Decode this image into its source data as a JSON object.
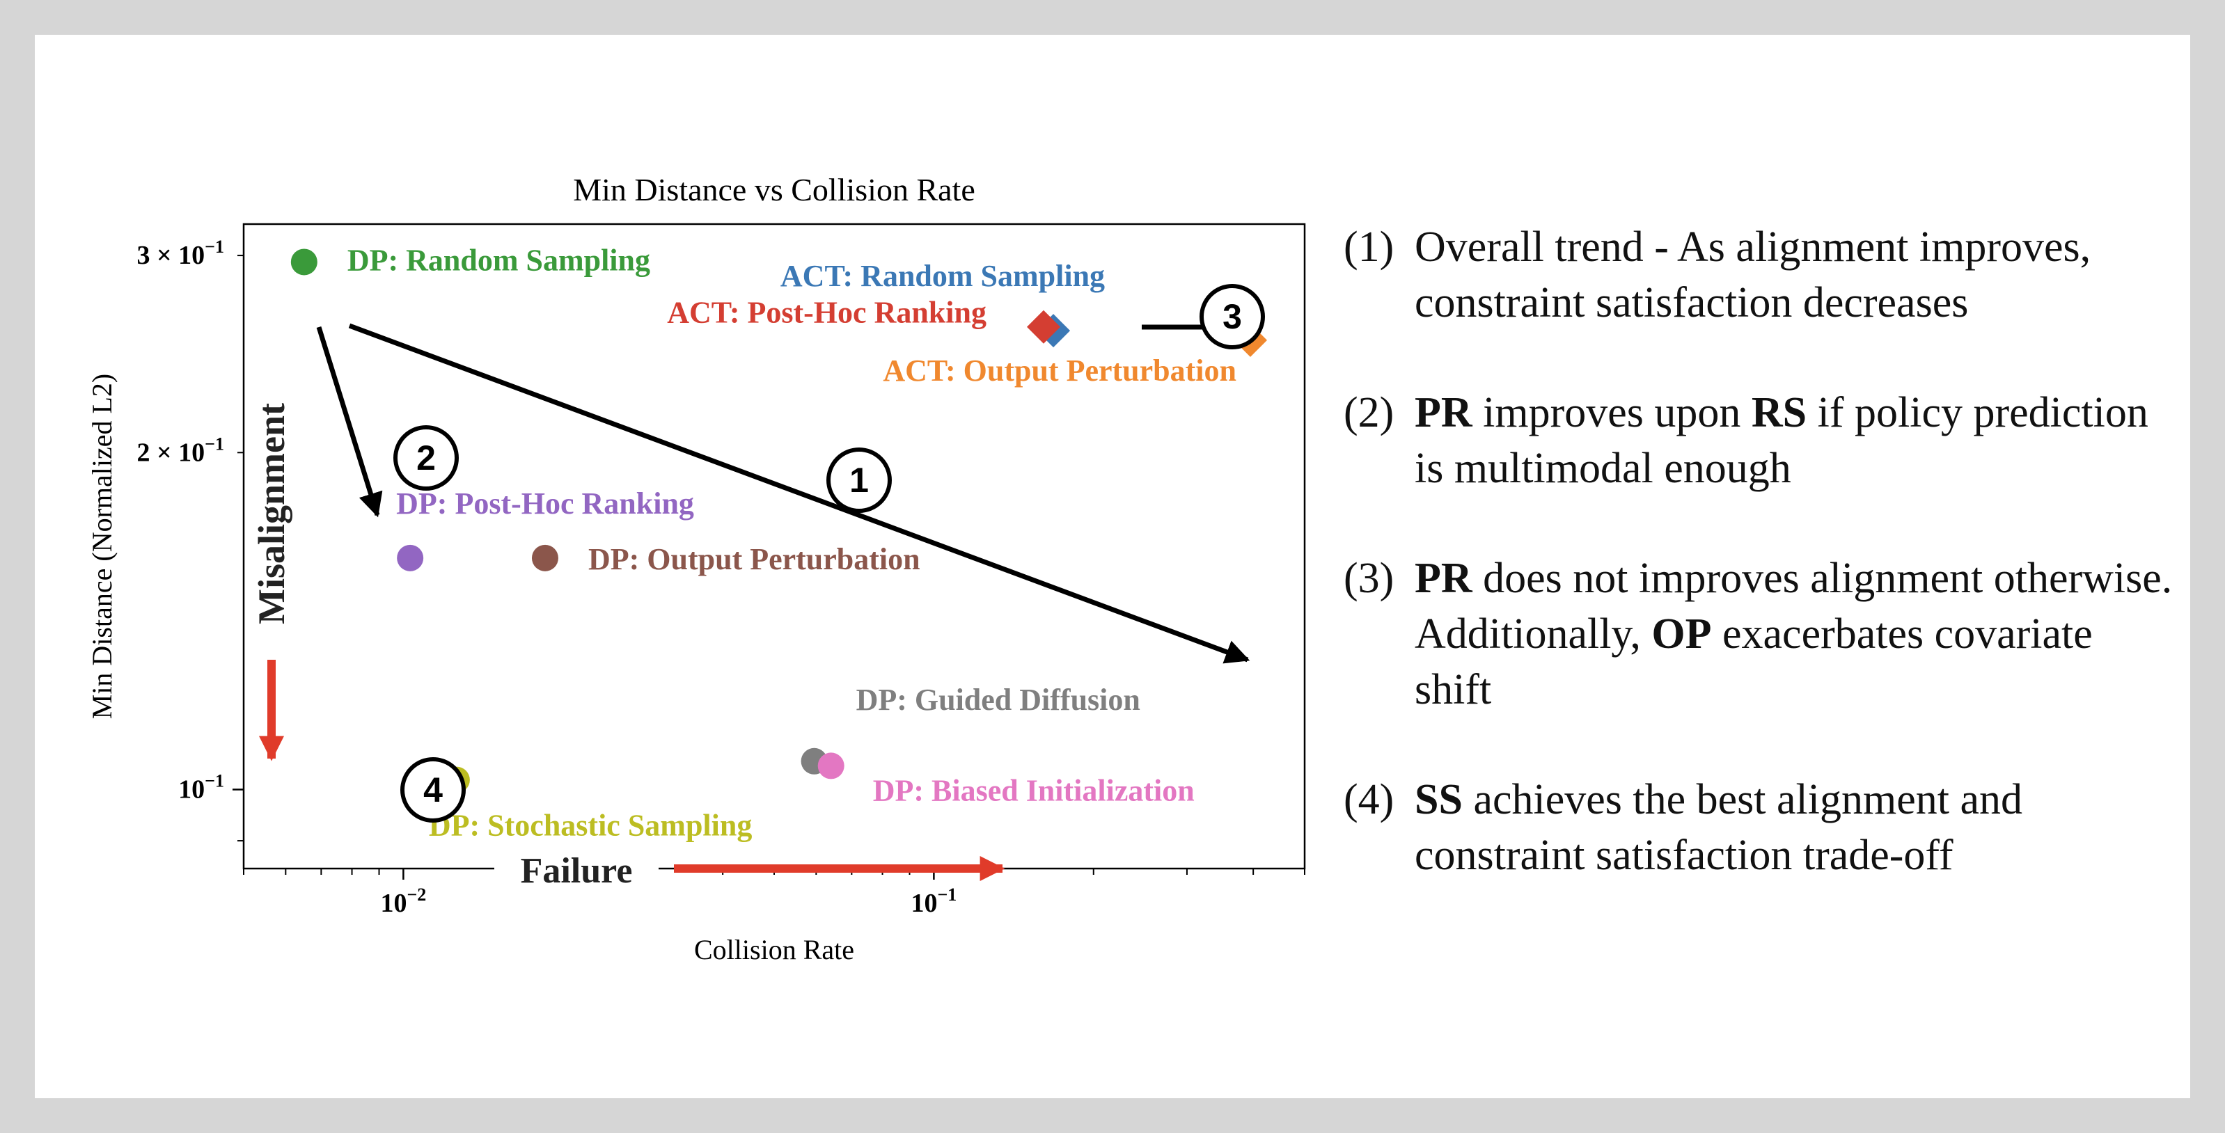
{
  "chart_data": {
    "type": "scatter",
    "title": "Min Distance vs Collision Rate",
    "xlabel": "Collision Rate",
    "ylabel": "Min Distance (Normalized L2)",
    "xscale": "log",
    "yscale": "log",
    "xlim": [
      0.005,
      0.5
    ],
    "ylim": [
      0.085,
      0.32
    ],
    "x_ticks": [
      {
        "value": 0.01,
        "base": "10",
        "exp": "−2"
      },
      {
        "value": 0.1,
        "base": "10",
        "exp": "−1"
      }
    ],
    "y_ticks": [
      {
        "value": 0.3,
        "label": "3 × 10",
        "exp": "−1"
      },
      {
        "value": 0.2,
        "label": "2 × 10",
        "exp": "−1"
      },
      {
        "value": 0.1,
        "label": "10",
        "exp": "−1"
      }
    ],
    "grid": false,
    "points": [
      {
        "label": "DP: Random Sampling",
        "x": 0.0065,
        "y": 0.296,
        "marker": "circle",
        "color": "#3a9a3a",
        "label_color": "#3a9a3a"
      },
      {
        "label": "DP: Post-Hoc Ranking",
        "x": 0.0103,
        "y": 0.161,
        "marker": "circle",
        "color": "#9266c2",
        "label_color": "#9266c2"
      },
      {
        "label": "DP: Output Perturbation",
        "x": 0.0185,
        "y": 0.161,
        "marker": "circle",
        "color": "#8b564b",
        "label_color": "#8b564b"
      },
      {
        "label": "DP: Stochastic Sampling",
        "x": 0.0126,
        "y": 0.102,
        "marker": "circle",
        "color": "#bcbd22",
        "label_color": "#bcbd22"
      },
      {
        "label": "DP: Guided Diffusion",
        "x": 0.0595,
        "y": 0.106,
        "marker": "circle",
        "color": "#7f7f7f",
        "label_color": "#7f7f7f"
      },
      {
        "label": "DP: Biased Initialization",
        "x": 0.064,
        "y": 0.105,
        "marker": "circle",
        "color": "#e377c2",
        "label_color": "#e377c2"
      },
      {
        "label": "ACT: Random Sampling",
        "x": 0.168,
        "y": 0.257,
        "marker": "diamond",
        "color": "#3b78b5",
        "label_color": "#3b78b5"
      },
      {
        "label": "ACT: Post-Hoc Ranking",
        "x": 0.161,
        "y": 0.259,
        "marker": "diamond",
        "color": "#d43e32",
        "label_color": "#d43e32"
      },
      {
        "label": "ACT: Output Perturbation",
        "x": 0.395,
        "y": 0.252,
        "marker": "diamond",
        "color": "#f0882e",
        "label_color": "#f0882e"
      }
    ],
    "badges": [
      "1",
      "2",
      "3",
      "4"
    ],
    "arrow_labels": {
      "y": "Misalignment",
      "x": "Failure"
    },
    "arrow_color": "#e03b2a"
  },
  "notes": [
    {
      "number": "(1)",
      "parts": [
        {
          "text": "Overall trend - As alignment improves, constraint satisfaction decreases",
          "bold": false
        }
      ]
    },
    {
      "number": "(2)",
      "parts": [
        {
          "text": "PR",
          "bold": true
        },
        {
          "text": " improves upon ",
          "bold": false
        },
        {
          "text": "RS",
          "bold": true
        },
        {
          "text": " if policy prediction is multimodal enough",
          "bold": false
        }
      ]
    },
    {
      "number": "(3)",
      "parts": [
        {
          "text": "PR",
          "bold": true
        },
        {
          "text": " does not improves alignment otherwise. Additionally, ",
          "bold": false
        },
        {
          "text": "OP",
          "bold": true
        },
        {
          "text": " exacerbates covariate shift",
          "bold": false
        }
      ]
    },
    {
      "number": "(4)",
      "parts": [
        {
          "text": "SS",
          "bold": true
        },
        {
          "text": " achieves the best alignment and constraint satisfaction trade-off",
          "bold": false
        }
      ]
    }
  ]
}
